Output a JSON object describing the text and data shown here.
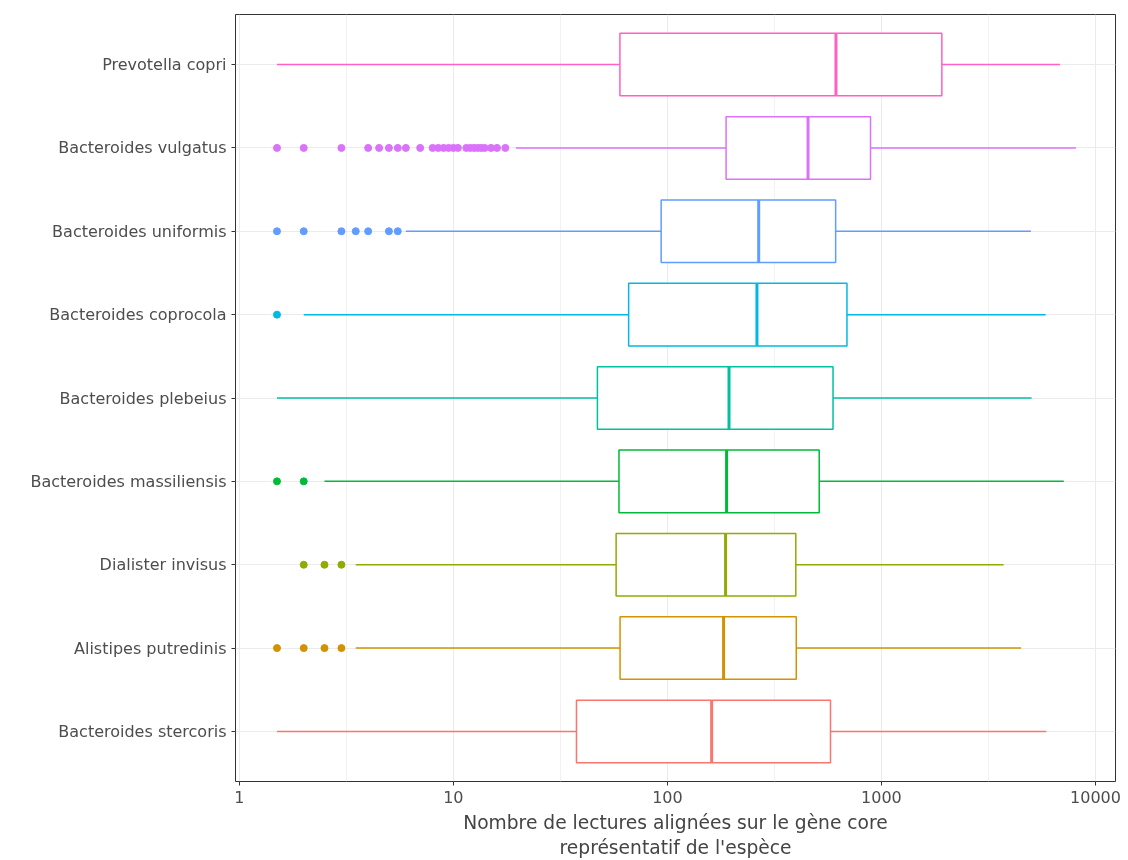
{
  "chart_data": {
    "type": "box",
    "orientation": "horizontal",
    "xlabel": "Nombre de lectures alignées sur le gène core\nreprésentatif de l'espèce",
    "categories": [
      "Prevotella copri",
      "Bacteroides vulgatus",
      "Bacteroides uniformis",
      "Bacteroides coprocola",
      "Bacteroides plebeius",
      "Bacteroides massiliensis",
      "Dialister invisus",
      "Alistipes putredinis",
      "Bacteroides stercoris"
    ],
    "colors": [
      "#ff61c3",
      "#db72fb",
      "#619cff",
      "#00b9e3",
      "#00c19f",
      "#00ba38",
      "#93aa00",
      "#d39200",
      "#f8766d"
    ],
    "boxes": [
      {
        "low": 1.5,
        "q1": 60,
        "median": 613,
        "q3": 1915,
        "high": 6820
      },
      {
        "low": 19.6,
        "q1": 188,
        "median": 454,
        "q3": 889,
        "high": 8100,
        "outliers": [
          1.5,
          2,
          3,
          4,
          4.5,
          5,
          5.5,
          6,
          7,
          8,
          8.5,
          9,
          9.5,
          10,
          10.5,
          11.5,
          12,
          12.5,
          13,
          13.5,
          14,
          15,
          16,
          17.5
        ]
      },
      {
        "low": 6,
        "q1": 93.5,
        "median": 267,
        "q3": 611,
        "high": 4990,
        "outliers": [
          1.5,
          2,
          3,
          3.5,
          4,
          5,
          5.5
        ]
      },
      {
        "low": 2,
        "q1": 65.9,
        "median": 262,
        "q3": 690,
        "high": 5850,
        "outliers": [
          1.5
        ]
      },
      {
        "low": 1.5,
        "q1": 47.1,
        "median": 194,
        "q3": 594,
        "high": 5030
      },
      {
        "low": 2.5,
        "q1": 59.4,
        "median": 189,
        "q3": 512,
        "high": 7110,
        "outliers": [
          1.5,
          2
        ]
      },
      {
        "low": 3.5,
        "q1": 57.6,
        "median": 187,
        "q3": 398,
        "high": 3720,
        "outliers": [
          2,
          2.5,
          3
        ]
      },
      {
        "low": 3.5,
        "q1": 60.1,
        "median": 183,
        "q3": 400,
        "high": 4490,
        "outliers": [
          1.5,
          2,
          2.5,
          3
        ]
      },
      {
        "low": 1.5,
        "q1": 37.6,
        "median": 161,
        "q3": 578,
        "high": 5890
      }
    ],
    "log": "x",
    "xlim": [
      0.96,
      12400
    ],
    "xticks": [
      1,
      10,
      100,
      1000,
      10000
    ],
    "grid": true
  }
}
